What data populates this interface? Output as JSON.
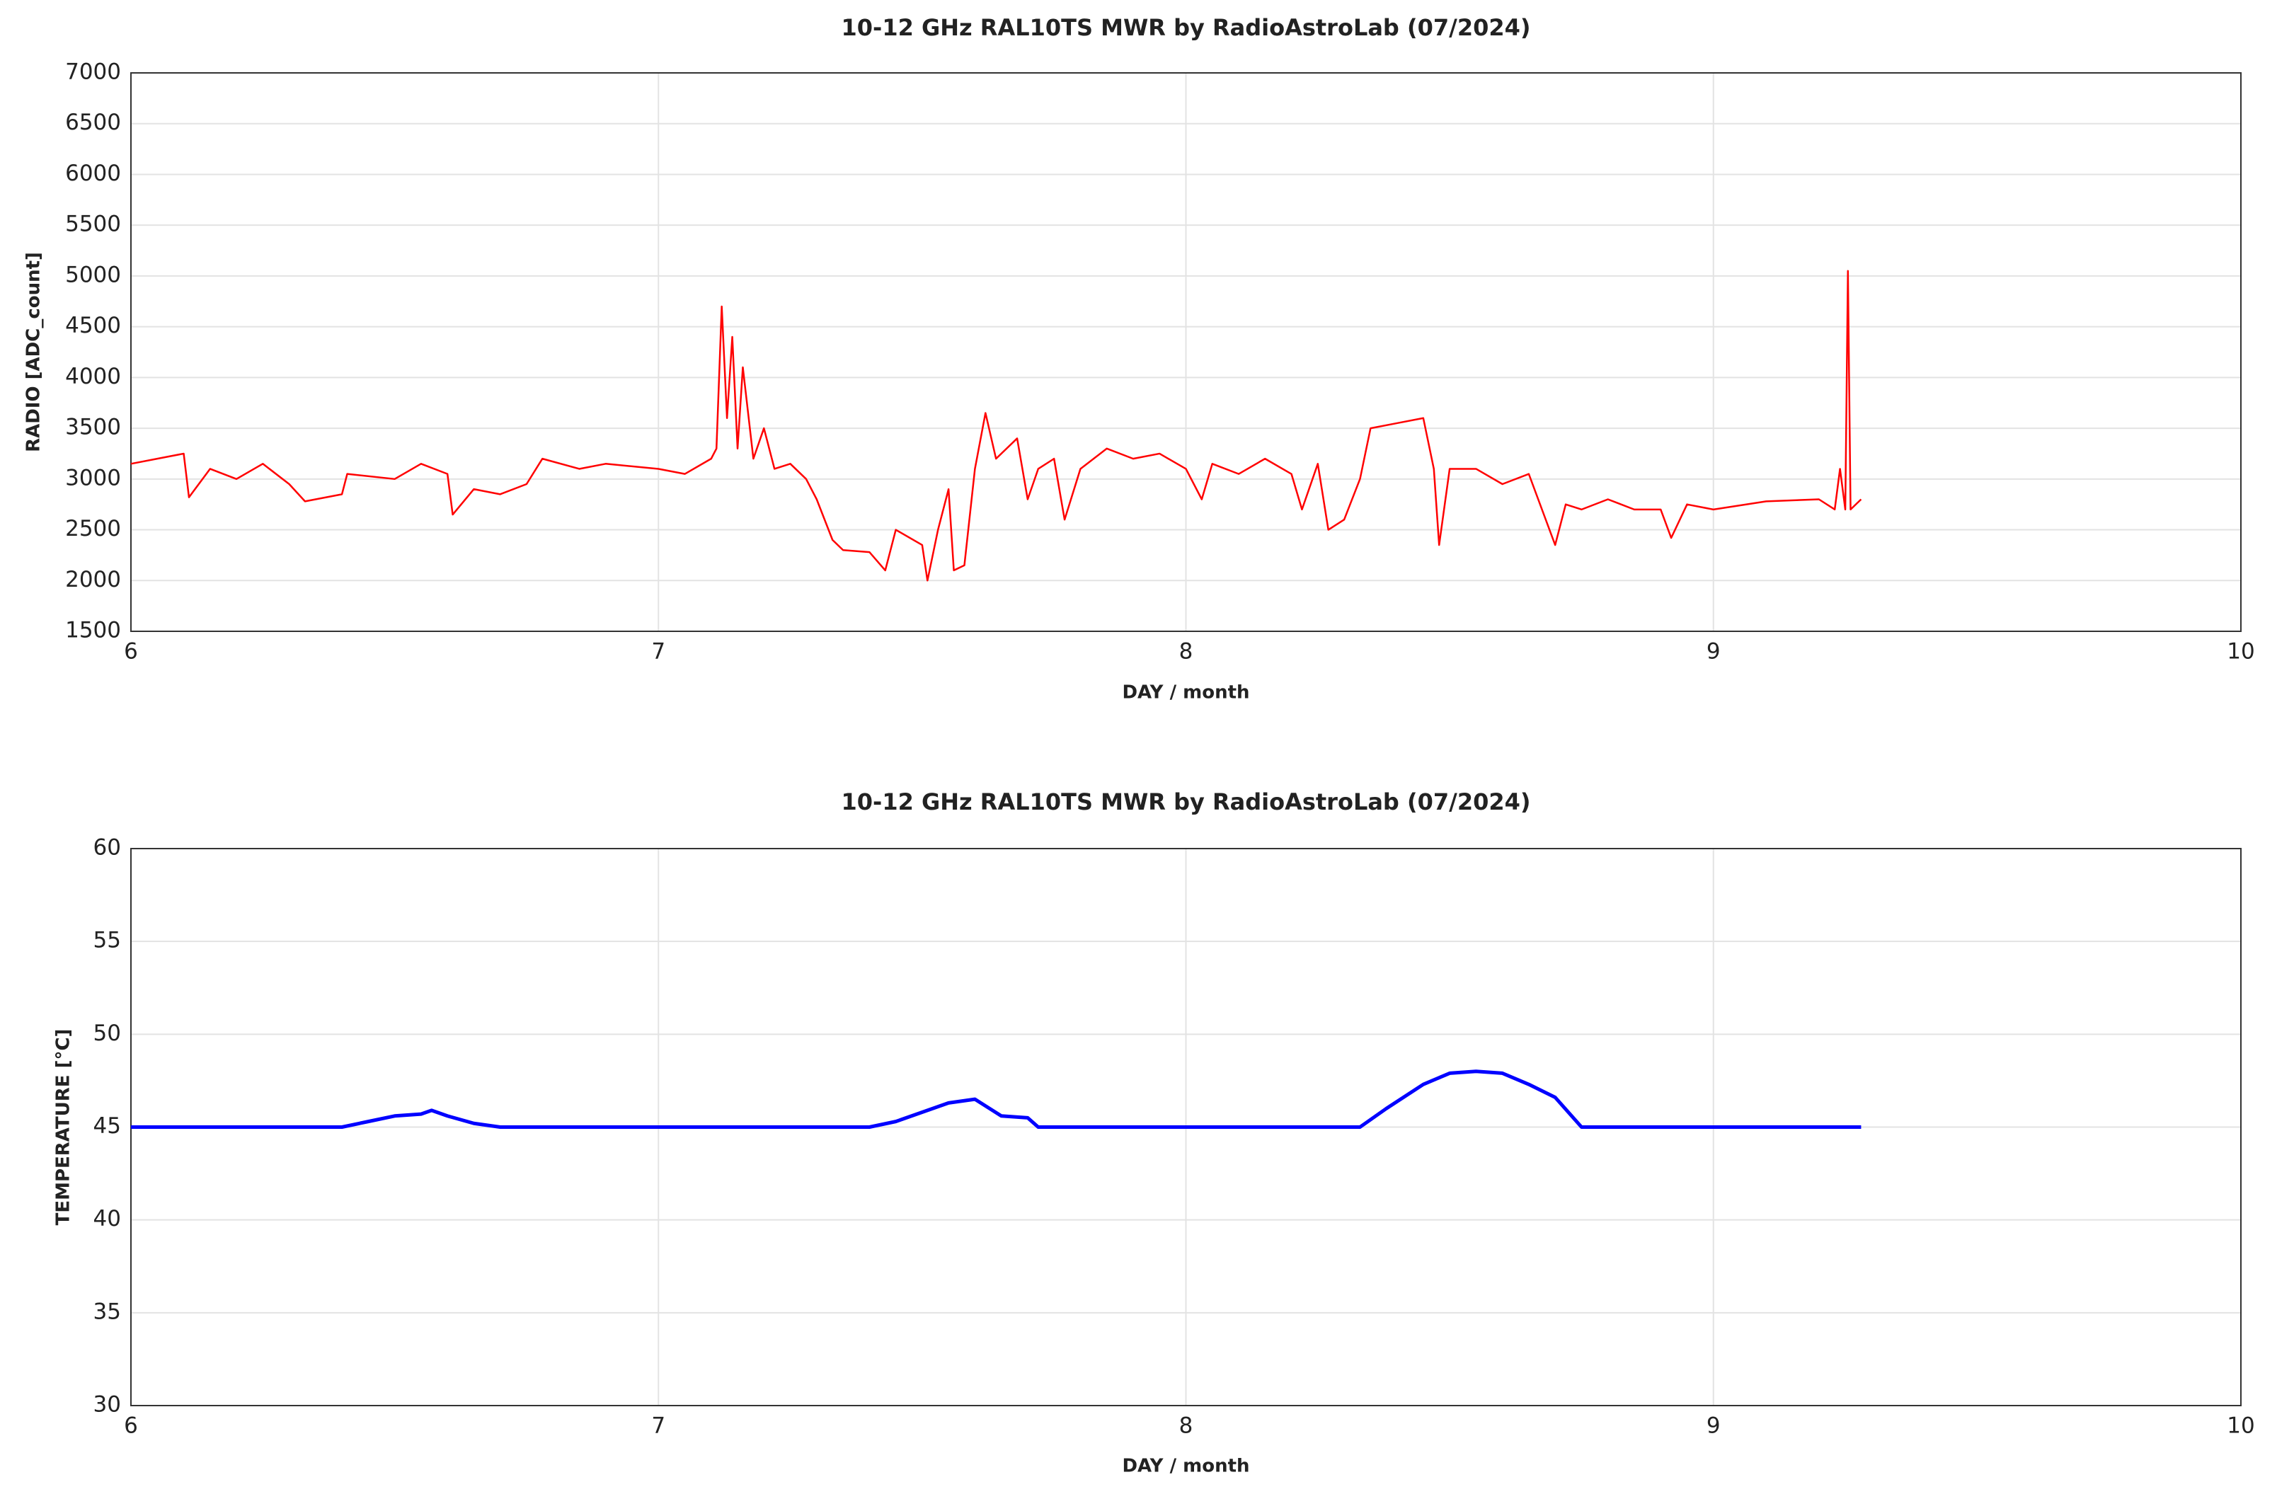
{
  "chart_data": [
    {
      "type": "line",
      "title": "10-12 GHz RAL10TS MWR by RadioAstroLab (07/2024)",
      "xlabel": "DAY / month",
      "ylabel": "RADIO [ADC_count]",
      "x": [
        6.0,
        6.05,
        6.1,
        6.11,
        6.15,
        6.2,
        6.25,
        6.3,
        6.33,
        6.4,
        6.41,
        6.5,
        6.55,
        6.6,
        6.61,
        6.65,
        6.7,
        6.75,
        6.78,
        6.85,
        6.9,
        7.0,
        7.05,
        7.1,
        7.11,
        7.12,
        7.13,
        7.14,
        7.15,
        7.16,
        7.18,
        7.2,
        7.22,
        7.25,
        7.28,
        7.3,
        7.33,
        7.35,
        7.4,
        7.43,
        7.45,
        7.5,
        7.51,
        7.53,
        7.55,
        7.56,
        7.58,
        7.6,
        7.62,
        7.64,
        7.68,
        7.7,
        7.72,
        7.75,
        7.77,
        7.8,
        7.85,
        7.9,
        7.95,
        8.0,
        8.03,
        8.05,
        8.1,
        8.15,
        8.2,
        8.22,
        8.25,
        8.27,
        8.3,
        8.33,
        8.35,
        8.4,
        8.45,
        8.47,
        8.48,
        8.5,
        8.55,
        8.6,
        8.65,
        8.7,
        8.72,
        8.75,
        8.8,
        8.85,
        8.9,
        8.92,
        8.95,
        9.0,
        9.1,
        9.2,
        9.23,
        9.24,
        9.25,
        9.255,
        9.26,
        9.28
      ],
      "series": [
        {
          "name": "RADIO",
          "color": "#ff0000",
          "values": [
            3150,
            3200,
            3250,
            2820,
            3100,
            3000,
            3150,
            2950,
            2780,
            2850,
            3050,
            3000,
            3150,
            3050,
            2650,
            2900,
            2850,
            2950,
            3200,
            3100,
            3150,
            3100,
            3050,
            3200,
            3300,
            4700,
            3600,
            4400,
            3300,
            4100,
            3200,
            3500,
            3100,
            3150,
            3000,
            2800,
            2400,
            2300,
            2280,
            2100,
            2500,
            2350,
            2000,
            2500,
            2900,
            2100,
            2150,
            3100,
            3650,
            3200,
            3400,
            2800,
            3100,
            3200,
            2600,
            3100,
            3300,
            3200,
            3250,
            3100,
            2800,
            3150,
            3050,
            3200,
            3050,
            2700,
            3150,
            2500,
            2600,
            3000,
            3500,
            3550,
            3600,
            3100,
            2350,
            3100,
            3100,
            2950,
            3050,
            2350,
            2750,
            2700,
            2800,
            2700,
            2700,
            2420,
            2750,
            2700,
            2780,
            2800,
            2700,
            3100,
            2700,
            5050,
            2700,
            2800
          ]
        }
      ],
      "xlim": [
        6,
        10
      ],
      "xticks": [
        6,
        7,
        8,
        9,
        10
      ],
      "ylim": [
        1500,
        7000
      ],
      "yticks": [
        1500,
        2000,
        2500,
        3000,
        3500,
        4000,
        4500,
        5000,
        5500,
        6000,
        6500,
        7000
      ],
      "grid": true
    },
    {
      "type": "line",
      "title": "10-12 GHz RAL10TS MWR by RadioAstroLab (07/2024)",
      "xlabel": "DAY / month",
      "ylabel": "TEMPERATURE [°C]",
      "x": [
        6.0,
        6.4,
        6.45,
        6.5,
        6.55,
        6.57,
        6.6,
        6.65,
        6.7,
        7.4,
        7.45,
        7.5,
        7.55,
        7.6,
        7.65,
        7.7,
        7.72,
        8.33,
        8.38,
        8.45,
        8.5,
        8.55,
        8.6,
        8.65,
        8.7,
        8.75,
        9.28
      ],
      "series": [
        {
          "name": "TEMPERATURE",
          "color": "#0000ff",
          "values": [
            45,
            45,
            45.3,
            45.6,
            45.7,
            45.9,
            45.6,
            45.2,
            45,
            45,
            45.3,
            45.8,
            46.3,
            46.5,
            45.6,
            45.5,
            45,
            45,
            46,
            47.3,
            47.9,
            48,
            47.9,
            47.3,
            46.6,
            45,
            45
          ]
        }
      ],
      "xlim": [
        6,
        10
      ],
      "xticks": [
        6,
        7,
        8,
        9,
        10
      ],
      "ylim": [
        30,
        60
      ],
      "yticks": [
        30,
        35,
        40,
        45,
        50,
        55,
        60
      ],
      "grid": true
    }
  ]
}
